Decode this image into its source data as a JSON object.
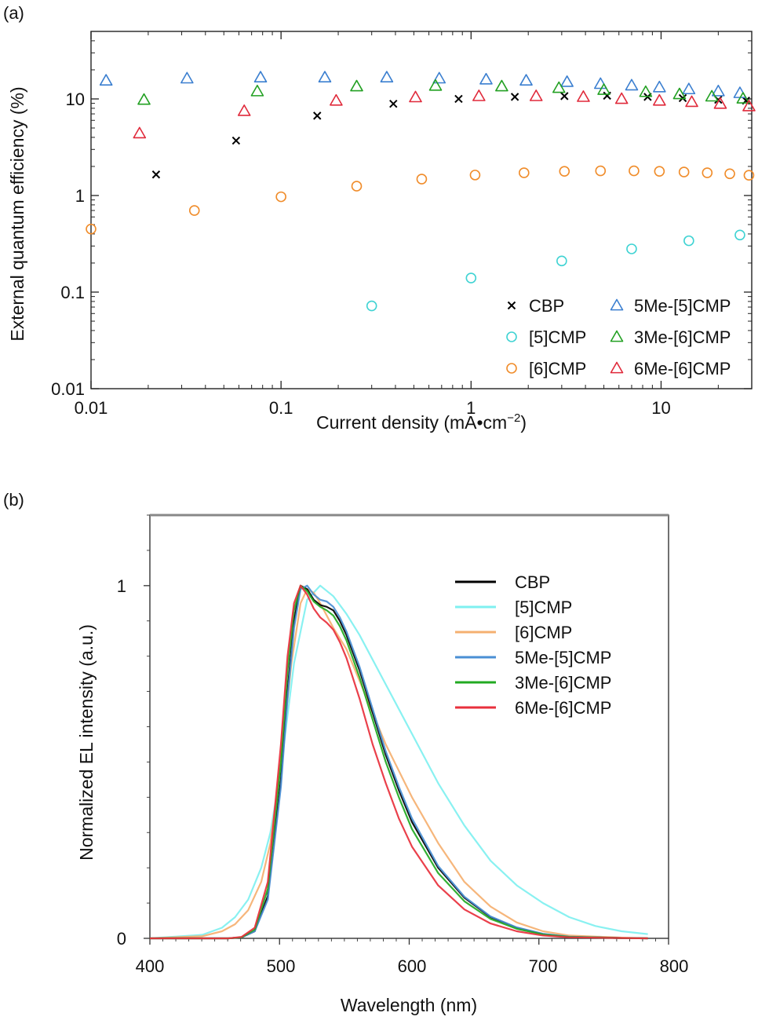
{
  "chart_data": [
    {
      "panel_label": "(a)",
      "type": "scatter",
      "xscale": "log",
      "yscale": "log",
      "xlabel": "Current density (mA•cm",
      "xlabel_sup": "−2",
      "xlabel_end": ")",
      "ylabel": "External quantum efficiency (%)",
      "xlim": [
        0.01,
        30
      ],
      "ylim": [
        0.01,
        50
      ],
      "xticks": [
        0.01,
        0.1,
        1,
        10
      ],
      "xtick_labels": [
        "0.01",
        "0.1",
        "1",
        "10"
      ],
      "yticks": [
        0.01,
        0.1,
        1,
        10
      ],
      "ytick_labels": [
        "0.01",
        "0.1",
        "1",
        "10"
      ],
      "legend_position": "bottom-right",
      "series": [
        {
          "name": "CBP",
          "marker": "cross",
          "color": "#000000",
          "x": [
            0.022,
            0.058,
            0.155,
            0.39,
            0.86,
            1.7,
            3.1,
            5.2,
            8.5,
            13,
            20,
            28
          ],
          "y": [
            1.65,
            3.7,
            6.7,
            8.9,
            10.0,
            10.5,
            10.7,
            10.8,
            10.5,
            10.2,
            9.8,
            9.6
          ]
        },
        {
          "name": "[5]CMP",
          "marker": "circle",
          "color": "#3fd3d3",
          "x": [
            0.3,
            1.0,
            3.0,
            7.0,
            14,
            26
          ],
          "y": [
            0.072,
            0.14,
            0.21,
            0.28,
            0.34,
            0.39
          ]
        },
        {
          "name": "[6]CMP",
          "marker": "circle",
          "color": "#f08c2a",
          "x": [
            0.01,
            0.035,
            0.1,
            0.25,
            0.55,
            1.05,
            1.9,
            3.1,
            4.8,
            7.2,
            9.8,
            13.2,
            17.5,
            23,
            29
          ],
          "y": [
            0.45,
            0.7,
            0.97,
            1.25,
            1.48,
            1.63,
            1.72,
            1.78,
            1.8,
            1.8,
            1.78,
            1.75,
            1.72,
            1.68,
            1.62
          ]
        },
        {
          "name": "5Me-[5]CMP",
          "marker": "triangle",
          "color": "#3b7fd0",
          "x": [
            0.012,
            0.032,
            0.078,
            0.17,
            0.36,
            0.68,
            1.2,
            1.95,
            3.2,
            4.8,
            7.0,
            9.8,
            14,
            20,
            26
          ],
          "y": [
            15.5,
            16.3,
            16.7,
            16.7,
            16.7,
            16.3,
            15.9,
            15.5,
            15.0,
            14.3,
            13.8,
            13.2,
            12.6,
            12.0,
            11.5
          ]
        },
        {
          "name": "3Me-[6]CMP",
          "marker": "triangle",
          "color": "#22a022",
          "x": [
            0.019,
            0.075,
            0.25,
            0.65,
            1.45,
            2.9,
            5.0,
            8.3,
            12.5,
            18.5,
            27
          ],
          "y": [
            9.8,
            12.0,
            13.5,
            13.7,
            13.5,
            13.0,
            12.4,
            11.8,
            11.2,
            10.6,
            10.1
          ]
        },
        {
          "name": "6Me-[6]CMP",
          "marker": "triangle",
          "color": "#e0293a",
          "x": [
            0.018,
            0.064,
            0.195,
            0.51,
            1.1,
            2.2,
            3.9,
            6.2,
            9.8,
            14.5,
            20.5,
            29
          ],
          "y": [
            4.4,
            7.5,
            9.6,
            10.4,
            10.7,
            10.7,
            10.5,
            10.0,
            9.6,
            9.3,
            8.9,
            8.4
          ]
        }
      ]
    },
    {
      "panel_label": "(b)",
      "type": "line",
      "xlabel": "Wavelength (nm)",
      "ylabel": "Normalized EL intensity (a.u.)",
      "xlim": [
        400,
        800
      ],
      "ylim": [
        0,
        1.2
      ],
      "xticks": [
        400,
        500,
        600,
        700,
        800
      ],
      "xtick_labels": [
        "400",
        "500",
        "600",
        "700",
        "800"
      ],
      "yticks": [
        0,
        1
      ],
      "ytick_labels": [
        "0",
        "1"
      ],
      "legend_position": "upper-right",
      "series": [
        {
          "name": "CBP",
          "color": "#000000",
          "x": [
            400,
            460,
            470,
            480,
            490,
            500,
            505,
            510,
            515,
            520,
            525,
            530,
            535,
            540,
            545,
            550,
            560,
            570,
            580,
            590,
            600,
            620,
            640,
            660,
            680,
            700,
            720,
            760,
            780
          ],
          "y": [
            0,
            0,
            0.003,
            0.02,
            0.12,
            0.45,
            0.7,
            0.9,
            1.0,
            0.99,
            0.96,
            0.945,
            0.94,
            0.93,
            0.9,
            0.86,
            0.76,
            0.64,
            0.52,
            0.42,
            0.33,
            0.2,
            0.115,
            0.06,
            0.03,
            0.012,
            0.004,
            0.001,
            0
          ]
        },
        {
          "name": "[5]CMP",
          "color": "#7ff0f0",
          "x": [
            400,
            440,
            455,
            465,
            475,
            485,
            492,
            500,
            510,
            520,
            530,
            540,
            550,
            560,
            580,
            600,
            620,
            640,
            660,
            680,
            700,
            720,
            740,
            760,
            780
          ],
          "y": [
            0,
            0.01,
            0.03,
            0.06,
            0.11,
            0.2,
            0.3,
            0.48,
            0.78,
            0.96,
            1.0,
            0.97,
            0.92,
            0.86,
            0.72,
            0.58,
            0.44,
            0.32,
            0.22,
            0.15,
            0.1,
            0.06,
            0.035,
            0.02,
            0.012
          ]
        },
        {
          "name": "[6]CMP",
          "color": "#f5b070",
          "x": [
            400,
            440,
            455,
            465,
            475,
            485,
            492,
            500,
            508,
            515,
            520,
            525,
            530,
            540,
            550,
            560,
            580,
            600,
            620,
            640,
            660,
            680,
            700,
            720,
            760,
            780
          ],
          "y": [
            0,
            0.006,
            0.02,
            0.04,
            0.08,
            0.16,
            0.27,
            0.5,
            0.78,
            0.95,
            0.99,
            0.98,
            0.95,
            0.88,
            0.82,
            0.73,
            0.55,
            0.4,
            0.27,
            0.16,
            0.09,
            0.045,
            0.02,
            0.008,
            0.002,
            0
          ]
        },
        {
          "name": "5Me-[5]CMP",
          "color": "#4a8fd4",
          "x": [
            400,
            460,
            470,
            480,
            490,
            500,
            505,
            510,
            515,
            520,
            525,
            530,
            535,
            540,
            545,
            550,
            560,
            570,
            580,
            590,
            600,
            620,
            640,
            660,
            680,
            700,
            720,
            760,
            780
          ],
          "y": [
            0,
            0,
            0.003,
            0.02,
            0.11,
            0.43,
            0.68,
            0.88,
            0.99,
            1.0,
            0.975,
            0.96,
            0.955,
            0.94,
            0.91,
            0.87,
            0.77,
            0.65,
            0.53,
            0.43,
            0.34,
            0.205,
            0.118,
            0.062,
            0.031,
            0.013,
            0.005,
            0.001,
            0
          ]
        },
        {
          "name": "3Me-[6]CMP",
          "color": "#22aa22",
          "x": [
            400,
            460,
            470,
            480,
            490,
            500,
            505,
            510,
            515,
            520,
            525,
            530,
            535,
            540,
            545,
            550,
            560,
            570,
            580,
            590,
            600,
            620,
            640,
            660,
            680,
            700,
            720,
            760,
            780
          ],
          "y": [
            0,
            0,
            0.003,
            0.025,
            0.14,
            0.5,
            0.76,
            0.93,
            1.0,
            0.985,
            0.955,
            0.94,
            0.93,
            0.915,
            0.885,
            0.845,
            0.74,
            0.62,
            0.5,
            0.4,
            0.31,
            0.185,
            0.105,
            0.055,
            0.027,
            0.011,
            0.004,
            0.001,
            0
          ]
        },
        {
          "name": "6Me-[6]CMP",
          "color": "#e8303c",
          "x": [
            400,
            460,
            470,
            480,
            490,
            500,
            505,
            510,
            515,
            520,
            525,
            530,
            535,
            540,
            545,
            550,
            560,
            570,
            580,
            590,
            600,
            620,
            640,
            660,
            680,
            700,
            720,
            760,
            780
          ],
          "y": [
            0,
            0,
            0.004,
            0.03,
            0.16,
            0.55,
            0.8,
            0.95,
            1.0,
            0.975,
            0.935,
            0.91,
            0.895,
            0.875,
            0.84,
            0.795,
            0.68,
            0.55,
            0.44,
            0.34,
            0.26,
            0.15,
            0.082,
            0.042,
            0.02,
            0.008,
            0.003,
            0.001,
            0
          ]
        }
      ]
    }
  ]
}
